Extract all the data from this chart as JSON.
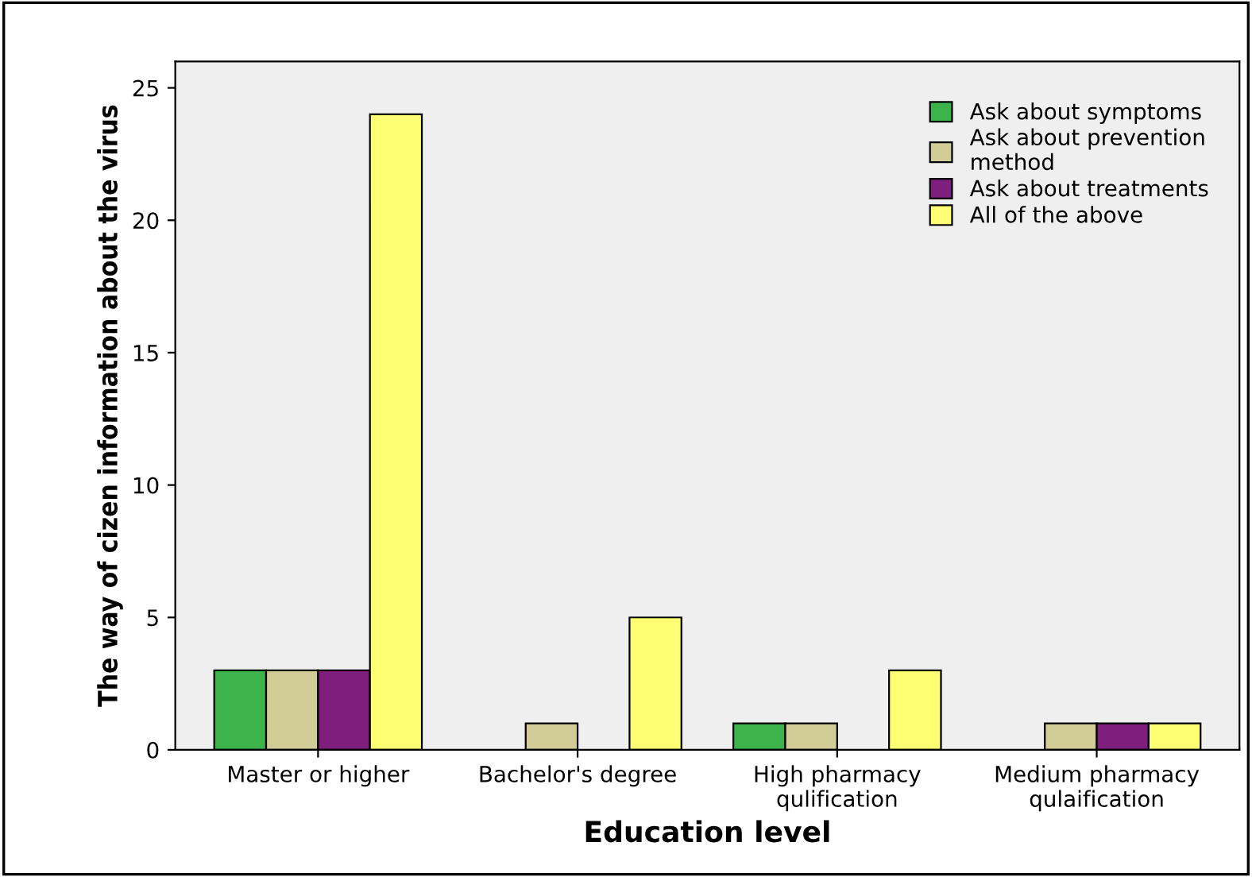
{
  "chart_data": {
    "type": "bar",
    "xlabel": "Education level",
    "ylabel": "The way of cizen information about the virus",
    "categories": [
      "Master or higher",
      "Bachelor's degree",
      "High pharmacy\nqulification",
      "Medium pharmacy\nqulaification"
    ],
    "series": [
      {
        "name": "Ask about symptoms",
        "color": "#3cb44b",
        "values": [
          3,
          null,
          1,
          null
        ]
      },
      {
        "name": "Ask about prevention\nmethod",
        "color": "#d2cc96",
        "values": [
          3,
          1,
          1,
          1
        ]
      },
      {
        "name": "Ask about treatments",
        "color": "#7e1f7e",
        "values": [
          3,
          null,
          null,
          1
        ]
      },
      {
        "name": "All of the above",
        "color": "#ffff73",
        "values": [
          24,
          5,
          3,
          1
        ]
      }
    ],
    "ylim": [
      0,
      26
    ],
    "yticks": [
      0,
      5,
      10,
      15,
      20,
      25
    ],
    "grid": false,
    "legend": "top right"
  }
}
